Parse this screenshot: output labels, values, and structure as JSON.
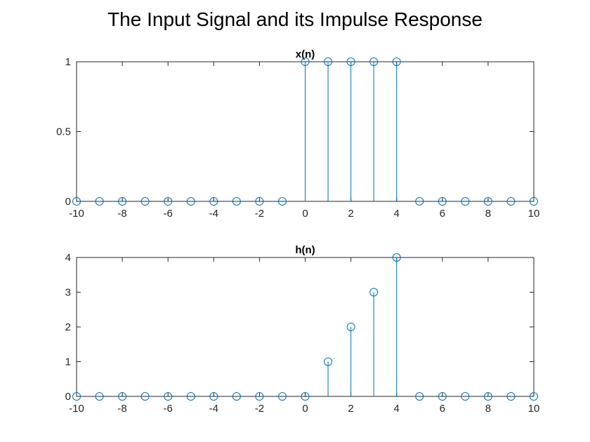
{
  "figure": {
    "title": "The Input Signal and its Impulse Response"
  },
  "colors": {
    "series": "#0072BD",
    "axis": "#262626"
  },
  "chart_data": [
    {
      "type": "stem",
      "title": "x(n)",
      "xlabel": "",
      "ylabel": "",
      "x": [
        -10,
        -9,
        -8,
        -7,
        -6,
        -5,
        -4,
        -3,
        -2,
        -1,
        0,
        1,
        2,
        3,
        4,
        5,
        6,
        7,
        8,
        9,
        10
      ],
      "values": [
        0,
        0,
        0,
        0,
        0,
        0,
        0,
        0,
        0,
        0,
        1,
        1,
        1,
        1,
        1,
        0,
        0,
        0,
        0,
        0,
        0
      ],
      "xlim": [
        -10,
        10
      ],
      "ylim": [
        0,
        1
      ],
      "xticks": [
        -10,
        -8,
        -6,
        -4,
        -2,
        0,
        2,
        4,
        6,
        8,
        10
      ],
      "yticks": [
        0,
        0.5,
        1
      ],
      "grid": false,
      "marker": "circle"
    },
    {
      "type": "stem",
      "title": "h(n)",
      "xlabel": "",
      "ylabel": "",
      "x": [
        -10,
        -9,
        -8,
        -7,
        -6,
        -5,
        -4,
        -3,
        -2,
        -1,
        0,
        1,
        2,
        3,
        4,
        5,
        6,
        7,
        8,
        9,
        10
      ],
      "values": [
        0,
        0,
        0,
        0,
        0,
        0,
        0,
        0,
        0,
        0,
        0,
        1,
        2,
        3,
        4,
        0,
        0,
        0,
        0,
        0,
        0
      ],
      "xlim": [
        -10,
        10
      ],
      "ylim": [
        0,
        4
      ],
      "xticks": [
        -10,
        -8,
        -6,
        -4,
        -2,
        0,
        2,
        4,
        6,
        8,
        10
      ],
      "yticks": [
        0,
        1,
        2,
        3,
        4
      ],
      "grid": false,
      "marker": "circle"
    }
  ]
}
